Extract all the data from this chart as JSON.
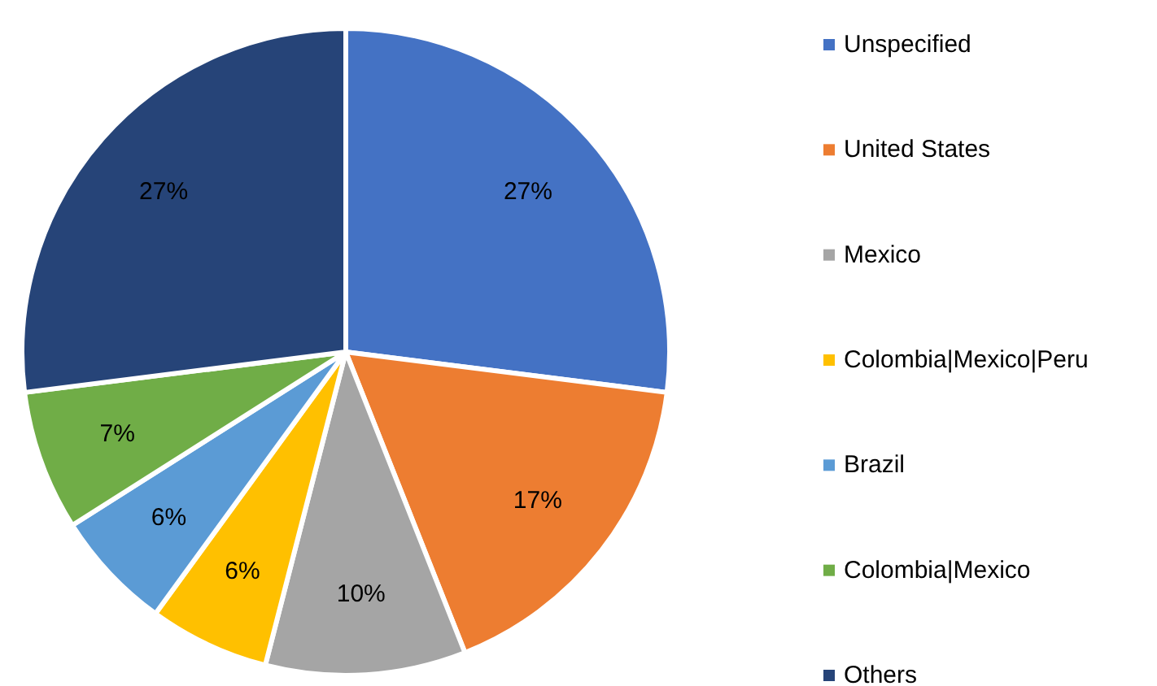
{
  "chart_data": {
    "type": "pie",
    "categories": [
      "Unspecified",
      "United States",
      "Mexico",
      "Colombia|Mexico|Peru",
      "Brazil",
      "Colombia|Mexico",
      "Others"
    ],
    "values": [
      27,
      17,
      10,
      6,
      6,
      7,
      27
    ],
    "colors": [
      "#4472c4",
      "#ed7d31",
      "#a5a5a5",
      "#ffc000",
      "#5b9bd5",
      "#70ad47",
      "#264478"
    ],
    "value_labels": [
      "27%",
      "17%",
      "10%",
      "6%",
      "6%",
      "7%",
      "27%"
    ],
    "legend": "right"
  }
}
